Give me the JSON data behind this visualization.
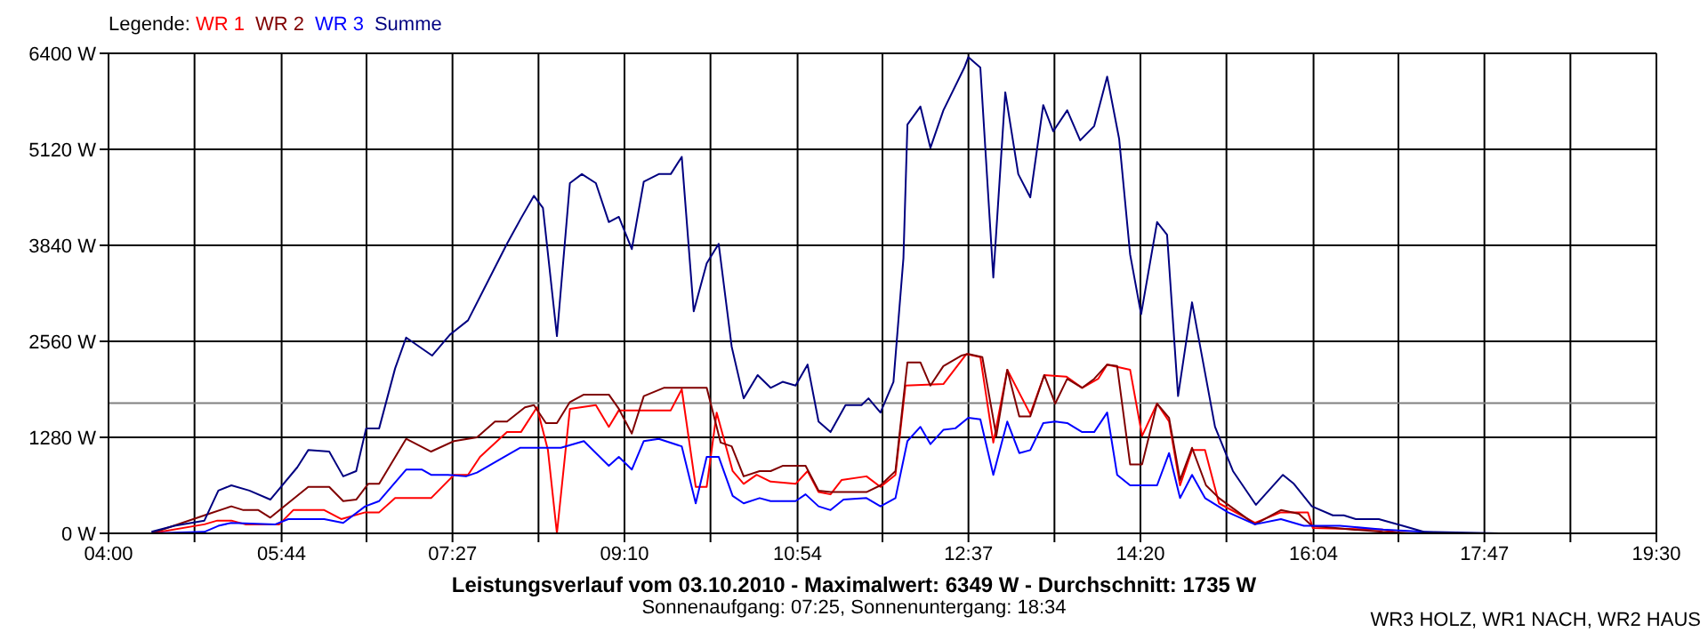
{
  "chart_data": {
    "type": "line",
    "title": "Leistungsverlauf vom 03.10.2010 - Maximalwert: 6349 W - Durchschnitt: 1735 W",
    "subtitle": "Sonnenaufgang: 07:25, Sonnenuntergang: 18:34",
    "legend_title": "Legende:",
    "annotations": [
      "WR3 HOLZ, WR1 NACH, WR2 HAUS"
    ],
    "legend": "top left",
    "grid": true,
    "marker": "none",
    "line_style": "solid",
    "xlim": [
      4,
      19.5
    ],
    "ylim": [
      0,
      6400
    ],
    "xticks": [
      {
        "value": 4,
        "label": "04:00"
      },
      {
        "value": 4.8611,
        "label": null
      },
      {
        "value": 5.7333,
        "label": "05:44"
      },
      {
        "value": 6.5833,
        "label": null
      },
      {
        "value": 7.4444,
        "label": "07:27"
      },
      {
        "value": 8.3056,
        "label": null
      },
      {
        "value": 9.1667,
        "label": "09:10"
      },
      {
        "value": 10.0278,
        "label": null
      },
      {
        "value": 10.9,
        "label": "10:54"
      },
      {
        "value": 11.75,
        "label": null
      },
      {
        "value": 12.6111,
        "label": "12:37"
      },
      {
        "value": 13.4722,
        "label": null
      },
      {
        "value": 14.3333,
        "label": "14:20"
      },
      {
        "value": 15.1944,
        "label": null
      },
      {
        "value": 16.0667,
        "label": "16:04"
      },
      {
        "value": 16.9167,
        "label": null
      },
      {
        "value": 17.7778,
        "label": "17:47"
      },
      {
        "value": 18.6389,
        "label": null
      },
      {
        "value": 19.5,
        "label": "19:30"
      }
    ],
    "yticks": [
      {
        "value": 0,
        "label": "0 W"
      },
      {
        "value": 1280,
        "label": "1280 W"
      },
      {
        "value": 2560,
        "label": "2560 W"
      },
      {
        "value": 3840,
        "label": "3840 W"
      },
      {
        "value": 5120,
        "label": "5120 W"
      },
      {
        "value": 6400,
        "label": "6400 W"
      }
    ],
    "ref_lines": [
      {
        "axis": "y",
        "value": 1735,
        "label": null,
        "color": "#808080"
      }
    ],
    "series": [
      {
        "name": "WR 1",
        "color": "#ff0000",
        "x": [
          4.43,
          4.96,
          5.09,
          5.23,
          5.37,
          5.71,
          5.85,
          6.16,
          6.33,
          6.57,
          6.71,
          6.87,
          7.23,
          7.46,
          7.6,
          7.72,
          7.99,
          8.13,
          8.29,
          8.4,
          8.49,
          8.62,
          8.88,
          9.01,
          9.11,
          9.63,
          9.74,
          9.88,
          9.99,
          10.09,
          10.25,
          10.36,
          10.49,
          10.63,
          10.88,
          11,
          11.11,
          11.23,
          11.34,
          11.59,
          11.73,
          11.88,
          11.98,
          12.36,
          12.59,
          12.73,
          12.86,
          13,
          13.23,
          13.37,
          13.59,
          13.75,
          13.91,
          14,
          14.23,
          14.35,
          14.5,
          14.62,
          14.73,
          14.85,
          14.98,
          15.12,
          15.48,
          15.74,
          16.01,
          16.06,
          16.76,
          16.94
        ],
        "values": [
          0,
          120,
          170,
          170,
          120,
          120,
          310,
          310,
          190,
          280,
          280,
          470,
          470,
          780,
          780,
          1020,
          1350,
          1350,
          1680,
          1110,
          0,
          1660,
          1710,
          1420,
          1640,
          1640,
          1920,
          620,
          620,
          1610,
          830,
          660,
          780,
          690,
          660,
          830,
          550,
          520,
          710,
          760,
          620,
          780,
          1970,
          1990,
          2390,
          2350,
          1210,
          2180,
          1590,
          2110,
          2090,
          1940,
          2060,
          2250,
          2180,
          1300,
          1730,
          1490,
          640,
          1110,
          1110,
          400,
          140,
          280,
          280,
          70,
          50,
          0
        ]
      },
      {
        "name": "WR 2",
        "color": "#800000",
        "x": [
          4.43,
          4.96,
          5.23,
          5.35,
          5.5,
          5.62,
          5.73,
          6,
          6.21,
          6.35,
          6.48,
          6.6,
          6.71,
          6.98,
          7.23,
          7.46,
          7.69,
          7.87,
          7.99,
          8.17,
          8.26,
          8.38,
          8.49,
          8.62,
          8.76,
          9.01,
          9.11,
          9.24,
          9.36,
          9.56,
          9.99,
          10.13,
          10.24,
          10.36,
          10.52,
          10.63,
          10.75,
          10.98,
          11.11,
          11.23,
          11.59,
          11.73,
          11.88,
          12,
          12.13,
          12.23,
          12.36,
          12.54,
          12.61,
          12.75,
          12.89,
          13,
          13.12,
          13.23,
          13.37,
          13.48,
          13.6,
          13.75,
          13.87,
          14,
          14.1,
          14.23,
          14.35,
          14.5,
          14.62,
          14.73,
          14.85,
          14.99,
          15.12,
          15.48,
          15.74,
          15.92,
          16.05,
          16.45,
          16.76,
          17.08
        ],
        "values": [
          0,
          240,
          360,
          310,
          310,
          210,
          330,
          620,
          620,
          430,
          450,
          660,
          660,
          1260,
          1090,
          1230,
          1280,
          1490,
          1490,
          1680,
          1710,
          1470,
          1470,
          1750,
          1850,
          1850,
          1660,
          1330,
          1830,
          1940,
          1940,
          1210,
          1160,
          760,
          830,
          830,
          900,
          900,
          570,
          550,
          550,
          640,
          830,
          2280,
          2280,
          1970,
          2230,
          2370,
          2390,
          2350,
          1300,
          2180,
          1560,
          1560,
          2110,
          1730,
          2060,
          1940,
          2060,
          2250,
          2230,
          920,
          920,
          1730,
          1540,
          710,
          1140,
          640,
          470,
          120,
          310,
          260,
          100,
          50,
          20,
          0
        ]
      },
      {
        "name": "WR 3",
        "color": "#0000ff",
        "x": [
          4.43,
          4.96,
          5.1,
          5.23,
          5.67,
          5.8,
          6.16,
          6.35,
          6.57,
          6.71,
          6.98,
          7.14,
          7.23,
          7.4,
          7.58,
          7.69,
          8.12,
          8.53,
          8.76,
          9.01,
          9.11,
          9.24,
          9.36,
          9.51,
          9.74,
          9.88,
          9.99,
          10.11,
          10.25,
          10.36,
          10.52,
          10.63,
          10.88,
          10.98,
          11.11,
          11.23,
          11.36,
          11.59,
          11.73,
          11.88,
          12,
          12.13,
          12.23,
          12.36,
          12.48,
          12.61,
          12.73,
          12.86,
          13,
          13.12,
          13.23,
          13.36,
          13.48,
          13.6,
          13.75,
          13.87,
          14,
          14.1,
          14.23,
          14.5,
          14.62,
          14.73,
          14.85,
          14.98,
          15.21,
          15.48,
          15.74,
          15.97,
          16.33,
          16.76,
          17.17,
          17.4
        ],
        "values": [
          0,
          20,
          100,
          140,
          120,
          190,
          190,
          140,
          360,
          430,
          850,
          850,
          780,
          780,
          760,
          810,
          1140,
          1140,
          1230,
          900,
          1020,
          850,
          1230,
          1260,
          1160,
          400,
          1020,
          1020,
          500,
          400,
          470,
          430,
          430,
          520,
          360,
          310,
          450,
          470,
          360,
          470,
          1230,
          1420,
          1190,
          1380,
          1400,
          1540,
          1520,
          780,
          1490,
          1070,
          1110,
          1470,
          1490,
          1470,
          1350,
          1350,
          1610,
          780,
          640,
          640,
          1070,
          470,
          780,
          470,
          280,
          120,
          190,
          100,
          100,
          50,
          20,
          0
        ]
      },
      {
        "name": "Summe",
        "color": "#000080",
        "x": [
          4.43,
          4.66,
          4.96,
          5.1,
          5.23,
          5.41,
          5.62,
          5.89,
          6,
          6.21,
          6.35,
          6.48,
          6.58,
          6.71,
          6.87,
          6.98,
          7.24,
          7.42,
          7.6,
          7.81,
          7.99,
          8.13,
          8.26,
          8.35,
          8.49,
          8.62,
          8.74,
          8.88,
          9.01,
          9.11,
          9.24,
          9.36,
          9.51,
          9.63,
          9.74,
          9.86,
          9.99,
          10.11,
          10.24,
          10.36,
          10.5,
          10.63,
          10.75,
          10.88,
          11,
          11.11,
          11.23,
          11.38,
          11.54,
          11.61,
          11.73,
          11.86,
          11.96,
          12,
          12.13,
          12.23,
          12.36,
          12.57,
          12.61,
          12.73,
          12.86,
          12.98,
          13.11,
          13.23,
          13.36,
          13.46,
          13.6,
          13.73,
          13.87,
          14,
          14.12,
          14.23,
          14.34,
          14.5,
          14.6,
          14.71,
          14.85,
          15.08,
          15.26,
          15.49,
          15.76,
          15.87,
          16.05,
          16.26,
          16.37,
          16.49,
          16.72,
          16.96,
          17.17,
          17.93
        ],
        "values": [
          20,
          100,
          170,
          570,
          640,
          570,
          450,
          880,
          1110,
          1090,
          760,
          830,
          1400,
          1400,
          2200,
          2610,
          2370,
          2650,
          2840,
          3390,
          3860,
          4200,
          4500,
          4340,
          2630,
          4670,
          4790,
          4670,
          4150,
          4220,
          3790,
          4690,
          4790,
          4790,
          5020,
          2960,
          3600,
          3860,
          2490,
          1800,
          2110,
          1940,
          2020,
          1970,
          2250,
          1490,
          1350,
          1710,
          1710,
          1800,
          1610,
          2020,
          3670,
          5450,
          5690,
          5140,
          5640,
          6210,
          6350,
          6210,
          3410,
          5880,
          4790,
          4480,
          5710,
          5360,
          5640,
          5240,
          5430,
          6090,
          5260,
          3720,
          2920,
          4150,
          3980,
          1830,
          3080,
          1420,
          830,
          380,
          780,
          660,
          360,
          240,
          240,
          190,
          190,
          100,
          20,
          0
        ]
      }
    ]
  }
}
